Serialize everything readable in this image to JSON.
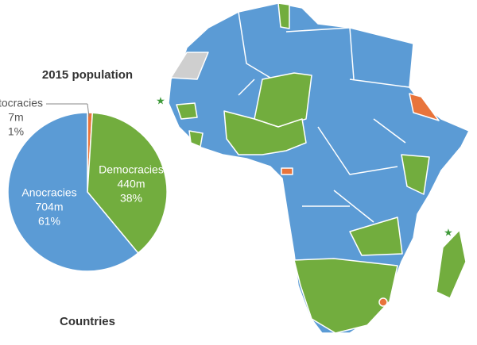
{
  "chart_data": {
    "type": "pie",
    "title": "2015 population",
    "categories": [
      "Autocracies",
      "Democracies",
      "Anocracies"
    ],
    "values": [
      1,
      38,
      61
    ],
    "value_labels": [
      "1%",
      "38%",
      "61%"
    ],
    "populations": [
      "7m",
      "440m",
      "704m"
    ],
    "colors": [
      "#e8743b",
      "#72ad3e",
      "#5b9bd5"
    ]
  },
  "map": {
    "title": "Countries"
  }
}
